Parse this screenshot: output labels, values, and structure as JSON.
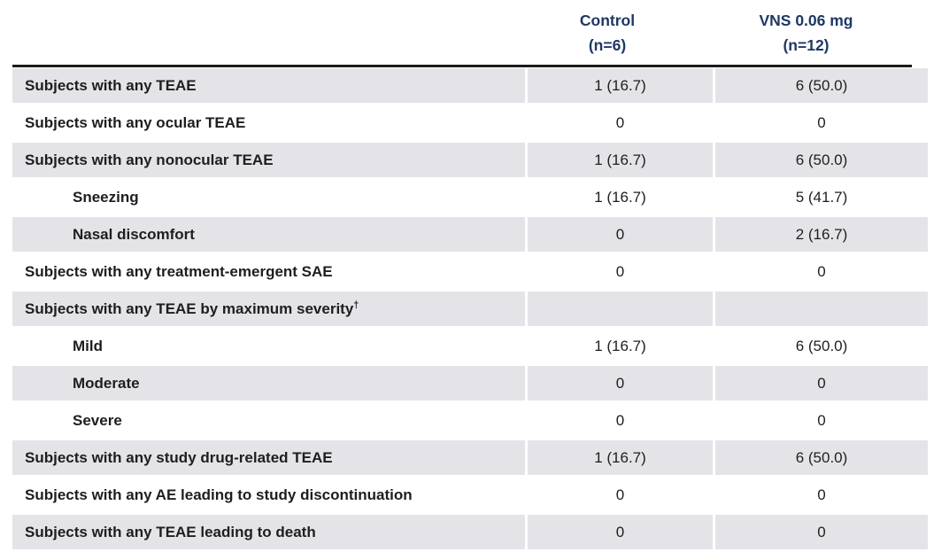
{
  "table": {
    "colors": {
      "header_text": "#1f3864",
      "row_shade": "#e4e4e8",
      "divider": "#1b1b1b",
      "body_text": "#1e1e1e"
    },
    "columns": [
      {
        "line1": "Control",
        "line2": "(n=6)"
      },
      {
        "line1": "VNS 0.06 mg",
        "line2": "(n=12)"
      }
    ],
    "rows": [
      {
        "label": "Subjects with any TEAE",
        "sup": "",
        "control": "1 (16.7)",
        "vns": "6 (50.0)"
      },
      {
        "label": "Subjects with any ocular TEAE",
        "sup": "",
        "control": "0",
        "vns": "0"
      },
      {
        "label": "Subjects with any nonocular TEAE",
        "sup": "",
        "control": "1 (16.7)",
        "vns": "6 (50.0)"
      },
      {
        "label": "Sneezing",
        "sup": "",
        "control": "1 (16.7)",
        "vns": "5 (41.7)"
      },
      {
        "label": "Nasal discomfort",
        "sup": "",
        "control": "0",
        "vns": "2 (16.7)"
      },
      {
        "label": "Subjects with any treatment-emergent SAE",
        "sup": "",
        "control": "0",
        "vns": "0"
      },
      {
        "label": "Subjects with any TEAE by maximum severity",
        "sup": "†",
        "control": "",
        "vns": ""
      },
      {
        "label": "Mild",
        "sup": "",
        "control": "1 (16.7)",
        "vns": "6 (50.0)"
      },
      {
        "label": "Moderate",
        "sup": "",
        "control": "0",
        "vns": "0"
      },
      {
        "label": "Severe",
        "sup": "",
        "control": "0",
        "vns": "0"
      },
      {
        "label": "Subjects with any study drug-related TEAE",
        "sup": "",
        "control": "1 (16.7)",
        "vns": "6 (50.0)"
      },
      {
        "label": "Subjects with any AE leading to study discontinuation",
        "sup": "",
        "control": "0",
        "vns": "0"
      },
      {
        "label": "Subjects with any TEAE leading to death",
        "sup": "",
        "control": "0",
        "vns": "0"
      }
    ]
  }
}
